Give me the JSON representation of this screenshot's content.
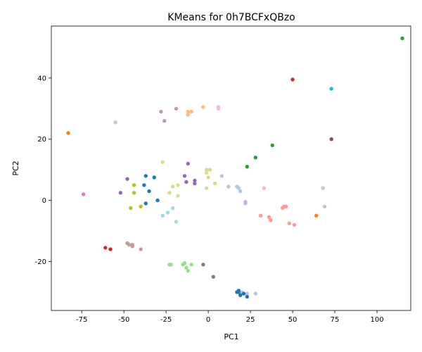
{
  "chart_data": {
    "type": "scatter",
    "title": "KMeans for 0h7BCFxQBzo",
    "xlabel": "PC1",
    "ylabel": "PC2",
    "xlim": [
      -93,
      120
    ],
    "ylim": [
      -36,
      57
    ],
    "xticks": [
      -75,
      -50,
      -25,
      0,
      25,
      50,
      75,
      100
    ],
    "yticks": [
      -20,
      0,
      20,
      40
    ],
    "grid": false,
    "legend": "none",
    "colors": {
      "tab-blue": "#1f77b4",
      "tab-light-blue": "#aec7e8",
      "tab-orange": "#ff7f0e",
      "tab-light-orange": "#ffbb78",
      "tab-green": "#2ca02c",
      "tab-light-green": "#98df8a",
      "tab-red": "#d62728",
      "tab-light-red": "#ff9896",
      "tab-purple": "#9467bd",
      "tab-light-purple": "#c5b0d5",
      "tab-brown": "#8c564b",
      "tab-light-brown": "#c49c94",
      "tab-pink": "#e377c2",
      "tab-light-pink": "#f7b6d2",
      "tab-gray": "#7f7f7f",
      "tab-light-gray": "#c7c7c7",
      "tab-olive": "#bcbd22",
      "tab-light-olive": "#dbdb8d",
      "tab-cyan": "#17becf",
      "tab-light-cyan": "#9edae5"
    },
    "series": [
      {
        "color": "#1f77b4",
        "points": [
          [
            -37,
            8
          ],
          [
            -32,
            7.5
          ],
          [
            -35,
            3
          ],
          [
            -38,
            5
          ],
          [
            -37,
            -1
          ],
          [
            -30,
            0
          ]
        ]
      },
      {
        "color": "#aec7e8",
        "points": [
          [
            18,
            4
          ],
          [
            22,
            -1
          ],
          [
            8,
            8
          ],
          [
            12,
            4.5
          ],
          [
            19,
            3
          ],
          [
            17,
            4.5
          ],
          [
            20,
            -30
          ],
          [
            23,
            -30.5
          ],
          [
            28,
            -30.5
          ]
        ]
      },
      {
        "color": "#ff7f0e",
        "points": [
          [
            -83,
            22
          ],
          [
            64,
            -5
          ]
        ]
      },
      {
        "color": "#ffbb78",
        "points": [
          [
            -12,
            29
          ],
          [
            -10,
            29
          ],
          [
            -12,
            28
          ],
          [
            -3,
            30.5
          ]
        ]
      },
      {
        "color": "#2ca02c",
        "points": [
          [
            115,
            53
          ],
          [
            38,
            18
          ],
          [
            28,
            14
          ],
          [
            23,
            11
          ]
        ]
      },
      {
        "color": "#98df8a",
        "points": [
          [
            -23,
            -21
          ],
          [
            -22,
            -21
          ],
          [
            -15,
            -21
          ],
          [
            -14,
            -20.5
          ],
          [
            -13,
            -22
          ],
          [
            -12,
            -23
          ],
          [
            -10,
            -21
          ]
        ]
      },
      {
        "color": "#d62728",
        "points": [
          [
            50,
            39.5
          ],
          [
            -61,
            -15.5
          ],
          [
            -58,
            -16
          ]
        ]
      },
      {
        "color": "#ff9896",
        "points": [
          [
            31,
            -5
          ],
          [
            44,
            -2.5
          ],
          [
            45,
            -2
          ],
          [
            46,
            -2
          ],
          [
            48,
            -7.5
          ],
          [
            51,
            -8
          ],
          [
            36,
            -5.5
          ],
          [
            37,
            -6.5
          ]
        ]
      },
      {
        "color": "#9467bd",
        "points": [
          [
            -48,
            7
          ],
          [
            -52,
            2.5
          ],
          [
            -12,
            12
          ],
          [
            -14,
            8
          ],
          [
            -13,
            6
          ],
          [
            -8,
            6.5
          ],
          [
            -8,
            5.5
          ]
        ]
      },
      {
        "color": "#c5b0d5",
        "points": [
          [
            22,
            -0.5
          ]
        ]
      },
      {
        "color": "#8c564b",
        "points": [
          [
            73,
            20
          ]
        ]
      },
      {
        "color": "#c49c94",
        "points": [
          [
            -28,
            29
          ],
          [
            -26,
            26
          ],
          [
            -19,
            30
          ],
          [
            -48,
            -14
          ],
          [
            -47,
            -14.5
          ],
          [
            -45,
            -15
          ],
          [
            -45,
            -14.5
          ],
          [
            -40,
            -16
          ]
        ]
      },
      {
        "color": "#e377c2",
        "points": [
          [
            -74,
            2
          ]
        ]
      },
      {
        "color": "#f7b6d2",
        "points": [
          [
            6,
            30
          ],
          [
            6,
            30.5
          ],
          [
            33,
            4
          ]
        ]
      },
      {
        "color": "#7f7f7f",
        "points": [
          [
            -3,
            -21
          ],
          [
            3,
            -25
          ]
        ]
      },
      {
        "color": "#c7c7c7",
        "points": [
          [
            -55,
            25.5
          ],
          [
            68,
            4
          ],
          [
            69,
            -2
          ]
        ]
      },
      {
        "color": "#bcbd22",
        "points": [
          [
            -44,
            5
          ],
          [
            -44,
            2.5
          ],
          [
            -46,
            -2.5
          ],
          [
            -40,
            -2
          ]
        ]
      },
      {
        "color": "#dbdb8d",
        "points": [
          [
            -27,
            12.5
          ],
          [
            -1,
            10
          ],
          [
            1,
            10
          ],
          [
            -1,
            9
          ],
          [
            0,
            7.5
          ],
          [
            4,
            5.5
          ],
          [
            -1,
            4
          ],
          [
            -18,
            5
          ],
          [
            -21,
            4.5
          ],
          [
            -23,
            2.5
          ],
          [
            -18,
            1.5
          ]
        ]
      },
      {
        "color": "#17becf",
        "points": [
          [
            73,
            36.5
          ]
        ]
      },
      {
        "color": "#9edae5",
        "points": [
          [
            -27,
            -5
          ],
          [
            -24,
            -4
          ],
          [
            -21,
            -2.5
          ],
          [
            -19,
            -7
          ]
        ]
      },
      {
        "color": "#1f77b4",
        "points": [
          [
            18,
            -30
          ],
          [
            19,
            -31
          ],
          [
            21,
            -30.5
          ],
          [
            17,
            -30
          ],
          [
            23,
            -31.5
          ],
          [
            18,
            -29.5
          ]
        ]
      }
    ]
  }
}
